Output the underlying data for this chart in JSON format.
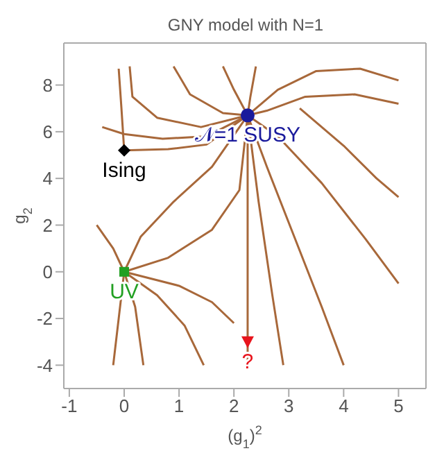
{
  "chart_data": {
    "type": "line",
    "title": "GNY model with N=1",
    "xlabel": "(g$_{1}$)$^{2}$",
    "ylabel": "g$_{2}$",
    "xlim": [
      -1.1,
      5.5
    ],
    "ylim": [
      -5,
      9.8
    ],
    "xticks": [
      -1,
      0,
      1,
      2,
      3,
      4,
      5
    ],
    "yticks": [
      -4,
      -2,
      0,
      2,
      4,
      6,
      8
    ],
    "legend": false,
    "marker": "none",
    "line_style": "solid",
    "series": [
      {
        "color": "#a8683a",
        "x": [
          2.25,
          2.25
        ],
        "values": [
          -4,
          6.7
        ]
      },
      {
        "color": "#a8683a",
        "x": [
          0,
          0.8,
          1.5,
          2.25
        ],
        "values": [
          5.2,
          5.25,
          5.45,
          6.7
        ]
      },
      {
        "color": "#a8683a",
        "x": [
          -0.4,
          0,
          0.7,
          1.5,
          2.25
        ],
        "values": [
          6.2,
          5.9,
          5.7,
          5.8,
          6.7
        ]
      },
      {
        "color": "#a8683a",
        "x": [
          0.1,
          0.15,
          0.6,
          1.4,
          2.25
        ],
        "values": [
          8.8,
          7.5,
          6.6,
          6.2,
          6.7
        ]
      },
      {
        "color": "#a8683a",
        "x": [
          -0.1,
          -0.05,
          0
        ],
        "values": [
          8.7,
          7,
          5.2
        ]
      },
      {
        "color": "#a8683a",
        "x": [
          0.9,
          1.2,
          1.8,
          2.25
        ],
        "values": [
          8.8,
          7.6,
          6.8,
          6.7
        ]
      },
      {
        "color": "#a8683a",
        "x": [
          1.8,
          2,
          2.25
        ],
        "values": [
          8.8,
          7.8,
          6.7
        ]
      },
      {
        "color": "#a8683a",
        "x": [
          2.4,
          2.3,
          2.25
        ],
        "values": [
          8.8,
          7.5,
          6.7
        ]
      },
      {
        "color": "#a8683a",
        "x": [
          5,
          4.3,
          3.5,
          2.8,
          2.25
        ],
        "values": [
          8.2,
          8.7,
          8.6,
          7.8,
          6.7
        ]
      },
      {
        "color": "#a8683a",
        "x": [
          5,
          4.2,
          3.3,
          2.6,
          2.25
        ],
        "values": [
          7.2,
          7.6,
          7.5,
          6.9,
          6.7
        ]
      },
      {
        "color": "#a8683a",
        "x": [
          2.25,
          2.8,
          3.6,
          4.4,
          5
        ],
        "values": [
          6.7,
          5.8,
          3.8,
          1.4,
          -0.5
        ]
      },
      {
        "color": "#a8683a",
        "x": [
          2.25,
          2.6,
          3.1,
          3.6,
          4
        ],
        "values": [
          6.7,
          4.5,
          1.5,
          -1.5,
          -4
        ]
      },
      {
        "color": "#a8683a",
        "x": [
          2.25,
          2.45,
          2.7,
          2.9
        ],
        "values": [
          6.7,
          3,
          -1,
          -4
        ]
      },
      {
        "color": "#a8683a",
        "x": [
          3.2,
          4,
          4.6,
          5
        ],
        "values": [
          7,
          5.4,
          4,
          3.2
        ]
      },
      {
        "color": "#a8683a",
        "x": [
          -0.2,
          -0.1,
          0
        ],
        "values": [
          -4,
          -2,
          0
        ]
      },
      {
        "color": "#a8683a",
        "x": [
          0,
          0.2,
          0.35
        ],
        "values": [
          0,
          -1.5,
          -4
        ]
      },
      {
        "color": "#a8683a",
        "x": [
          0,
          0.6,
          1.1,
          1.45
        ],
        "values": [
          0,
          -1,
          -2.3,
          -4
        ]
      },
      {
        "color": "#a8683a",
        "x": [
          0,
          1,
          1.6,
          2
        ],
        "values": [
          0,
          -0.6,
          -1.3,
          -2.2
        ]
      },
      {
        "color": "#a8683a",
        "x": [
          0,
          0.8,
          1.6,
          2.1,
          2.25
        ],
        "values": [
          0,
          0.6,
          1.8,
          3.5,
          6.7
        ]
      },
      {
        "color": "#a8683a",
        "x": [
          0,
          0.3,
          0.9,
          1.6,
          2.25
        ],
        "values": [
          0,
          1.5,
          3,
          4.5,
          6.7
        ]
      },
      {
        "color": "#a8683a",
        "x": [
          -0.5,
          -0.2,
          0
        ],
        "values": [
          2,
          1,
          0
        ]
      },
      {
        "type": "scatter",
        "name": "𝒩=1 SUSY",
        "color": "#1a1a9c",
        "marker": "circle",
        "x": [
          2.25
        ],
        "values": [
          6.7
        ]
      },
      {
        "type": "scatter",
        "name": "Ising",
        "color": "#000000",
        "marker": "diamond",
        "x": [
          0
        ],
        "values": [
          5.2
        ]
      },
      {
        "type": "scatter",
        "name": "UV",
        "color": "#22a022",
        "marker": "square",
        "x": [
          0
        ],
        "values": [
          0
        ]
      },
      {
        "type": "scatter",
        "name": "?",
        "color": "#e8141c",
        "marker": "triangle",
        "x": [
          2.25
        ],
        "values": [
          -3
        ]
      }
    ]
  }
}
